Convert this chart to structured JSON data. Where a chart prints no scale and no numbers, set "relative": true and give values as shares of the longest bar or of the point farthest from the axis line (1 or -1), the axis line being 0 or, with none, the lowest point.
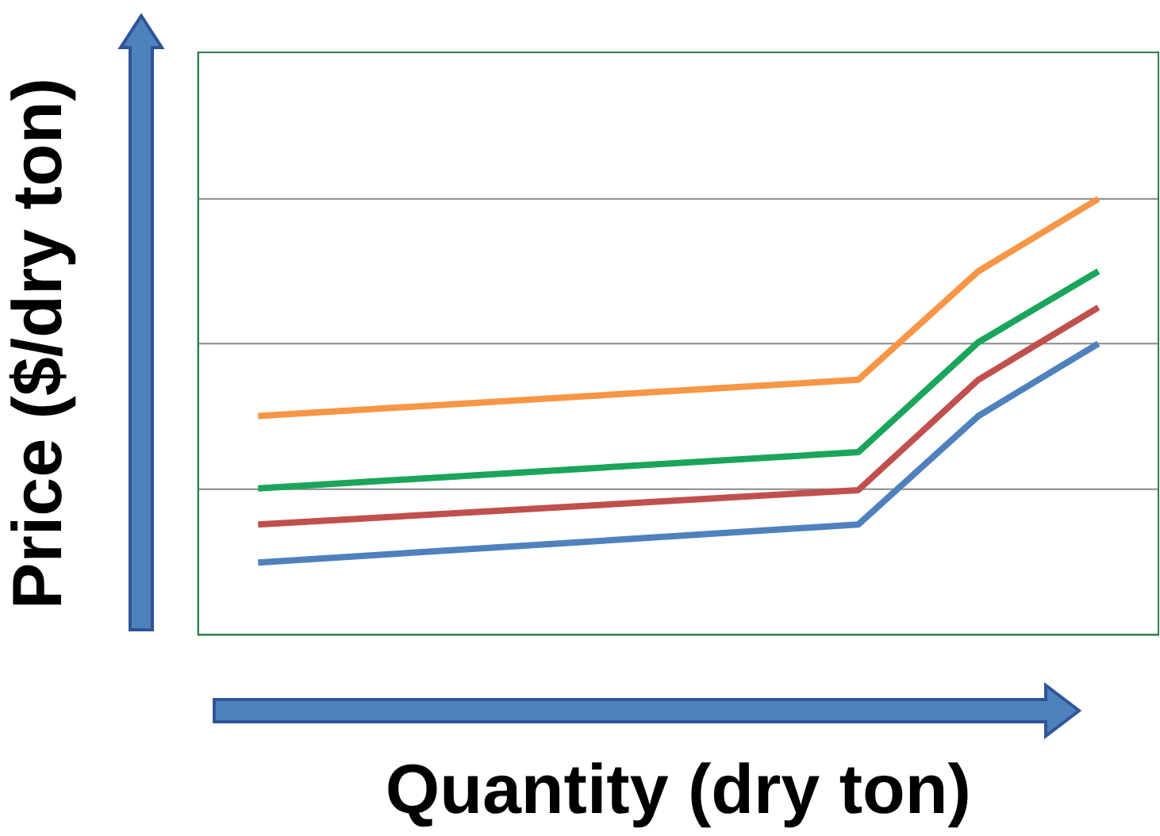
{
  "chart_data": {
    "type": "line",
    "relative": true,
    "xlabel": "Quantity (dry ton)",
    "ylabel": "Price ($/dry ton)",
    "categories": [
      null,
      null,
      null,
      null,
      null,
      null,
      null,
      null
    ],
    "legend": false,
    "marker": "none",
    "line_style": "solid",
    "ref_lines": [
      {
        "axis": "y",
        "value": 0.334,
        "color": "#888888",
        "line_style": "solid"
      },
      {
        "axis": "y",
        "value": 0.668,
        "color": "#888888",
        "line_style": "solid"
      },
      {
        "axis": "y",
        "value": 1.0,
        "color": "#888888",
        "line_style": "solid"
      }
    ],
    "series": [
      {
        "color": "#f79646",
        "values": [
          0.502,
          null,
          null,
          null,
          null,
          0.585,
          0.834,
          1
        ]
      },
      {
        "color": "#1aa55a",
        "values": [
          0.336,
          null,
          null,
          null,
          null,
          0.419,
          0.671,
          0.834
        ]
      },
      {
        "color": "#c0504d",
        "values": [
          0.253,
          null,
          null,
          null,
          null,
          0.332,
          0.585,
          0.751
        ]
      },
      {
        "color": "#4f81bd",
        "values": [
          0.166,
          null,
          null,
          null,
          null,
          0.253,
          0.502,
          0.668
        ]
      }
    ]
  }
}
